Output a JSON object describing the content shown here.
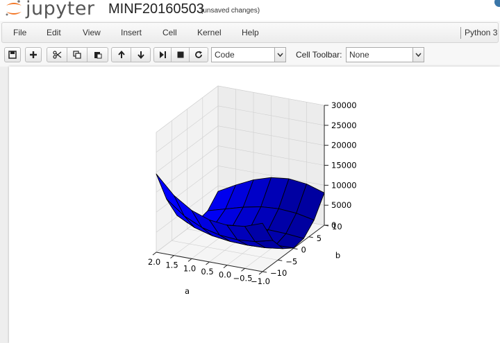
{
  "header": {
    "logo_text": "jupyter",
    "notebook_name": "MINF20160503",
    "save_status": "(unsaved changes)"
  },
  "menubar": {
    "items": [
      "File",
      "Edit",
      "View",
      "Insert",
      "Cell",
      "Kernel",
      "Help"
    ],
    "kernel_name": "Python 3"
  },
  "toolbar": {
    "buttons": [
      "save-icon",
      "plus-icon",
      "cut-icon",
      "copy-icon",
      "paste-icon",
      "arrow-up-icon",
      "arrow-down-icon",
      "run-icon",
      "stop-icon",
      "restart-icon"
    ],
    "cell_type": "Code",
    "cell_toolbar_label": "Cell Toolbar:",
    "cell_toolbar_value": "None"
  },
  "chart_data": {
    "type": "surface",
    "title": "",
    "xlabel": "a",
    "ylabel": "b",
    "zlabel": "",
    "x_ticks": [
      "−1.0",
      "−0.5",
      "0.0",
      "0.5",
      "1.0",
      "1.5",
      "2.0"
    ],
    "y_ticks": [
      "−10",
      "−5",
      "0",
      "5",
      "10"
    ],
    "z_ticks": [
      "0",
      "5000",
      "10000",
      "15000",
      "20000",
      "25000",
      "30000"
    ],
    "xlim": [
      -1.0,
      2.0
    ],
    "ylim": [
      -10,
      10
    ],
    "zlim": [
      0,
      30000
    ],
    "grid": true,
    "colors": {
      "surface_dark": "#0000a0",
      "surface_bright": "#0000ff",
      "edge": "#000000"
    }
  }
}
